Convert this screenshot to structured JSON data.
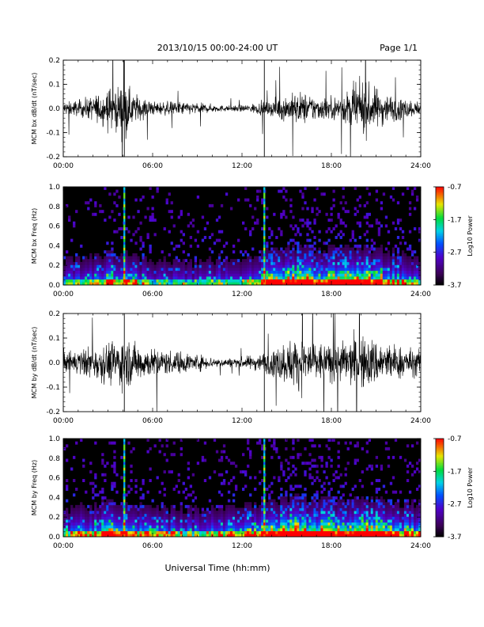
{
  "header": {
    "date_range": "2013/10/15  00:00-24:00 UT",
    "page": "Page 1/1"
  },
  "xlabel": "Universal Time (hh:mm)",
  "x_ticks": [
    "00:00",
    "06:00",
    "12:00",
    "18:00",
    "24:00"
  ],
  "chart_data": [
    {
      "type": "line",
      "ylabel": "MCM bx dB/dt (nT/sec)",
      "xlim": [
        0,
        24
      ],
      "ylim": [
        -0.2,
        0.2
      ],
      "y_ticks": [
        "0.2",
        "0.1",
        "0.0",
        "-0.1",
        "-0.2"
      ],
      "series": [
        {
          "hours": [
            0,
            1,
            2,
            3,
            4,
            5,
            6,
            7,
            8,
            9,
            10,
            11,
            12,
            13,
            14,
            15,
            16,
            17,
            18,
            19,
            20,
            21,
            22,
            23,
            24
          ],
          "amplitude": [
            0.05,
            0.06,
            0.09,
            0.15,
            0.18,
            0.1,
            0.05,
            0.05,
            0.05,
            0.04,
            0.03,
            0.02,
            0.025,
            0.04,
            0.06,
            0.1,
            0.12,
            0.09,
            0.08,
            0.12,
            0.2,
            0.15,
            0.1,
            0.07,
            0.05
          ]
        }
      ],
      "spikes": [
        4.1,
        13.5
      ]
    },
    {
      "type": "heatmap",
      "ylabel": "MCM bx Freq (Hz)",
      "xlim": [
        0,
        24
      ],
      "ylim": [
        0,
        1.0
      ],
      "y_ticks": [
        "1.0",
        "0.8",
        "0.6",
        "0.4",
        "0.2",
        "0.0"
      ],
      "colorbar": {
        "label": "Log10 Power",
        "ticks": [
          "-0.7",
          "-1.7",
          "-2.7",
          "-3.7"
        ],
        "range": [
          -3.7,
          -0.7
        ]
      },
      "activity_by_hour": [
        0.35,
        0.4,
        0.5,
        0.55,
        0.6,
        0.45,
        0.35,
        0.35,
        0.3,
        0.3,
        0.35,
        0.45,
        0.4,
        0.55,
        0.6,
        0.7,
        0.75,
        0.65,
        0.7,
        0.7,
        0.75,
        0.7,
        0.6,
        0.5,
        0.45
      ],
      "bright_lines": [
        4.1,
        13.5
      ]
    },
    {
      "type": "line",
      "ylabel": "MCM by dB/dt (nT/sec)",
      "xlim": [
        0,
        24
      ],
      "ylim": [
        -0.2,
        0.2
      ],
      "y_ticks": [
        "0.2",
        "0.1",
        "0.0",
        "-0.1",
        "-0.2"
      ],
      "series": [
        {
          "hours": [
            0,
            1,
            2,
            3,
            4,
            5,
            6,
            7,
            8,
            9,
            10,
            11,
            12,
            13,
            14,
            15,
            16,
            17,
            18,
            19,
            20,
            21,
            22,
            23,
            24
          ],
          "amplitude": [
            0.08,
            0.09,
            0.12,
            0.15,
            0.18,
            0.14,
            0.1,
            0.09,
            0.08,
            0.06,
            0.04,
            0.03,
            0.04,
            0.06,
            0.09,
            0.16,
            0.19,
            0.15,
            0.13,
            0.16,
            0.2,
            0.17,
            0.14,
            0.11,
            0.09
          ]
        }
      ],
      "spikes": [
        4.1,
        13.5
      ]
    },
    {
      "type": "heatmap",
      "ylabel": "MCM by Freq (Hz)",
      "xlim": [
        0,
        24
      ],
      "ylim": [
        0,
        1.0
      ],
      "y_ticks": [
        "1.0",
        "0.8",
        "0.6",
        "0.4",
        "0.2",
        "0.0"
      ],
      "colorbar": {
        "label": "Log10 Power",
        "ticks": [
          "-0.7",
          "-1.7",
          "-2.7",
          "-3.7"
        ],
        "range": [
          -3.7,
          -0.7
        ]
      },
      "activity_by_hour": [
        0.45,
        0.5,
        0.55,
        0.6,
        0.65,
        0.5,
        0.45,
        0.45,
        0.4,
        0.4,
        0.45,
        0.55,
        0.5,
        0.65,
        0.7,
        0.8,
        0.85,
        0.75,
        0.8,
        0.8,
        0.85,
        0.8,
        0.7,
        0.6,
        0.55
      ],
      "bright_lines": [
        4.1,
        13.5
      ]
    }
  ]
}
